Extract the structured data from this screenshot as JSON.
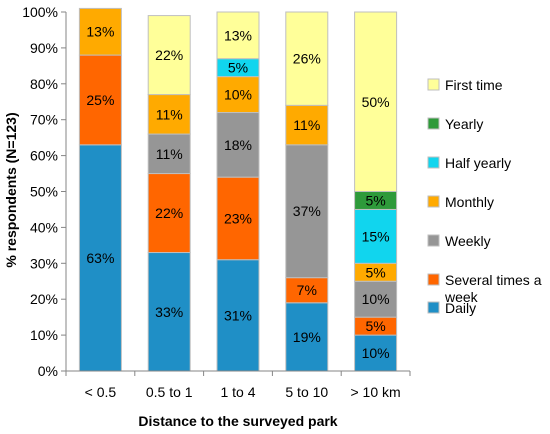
{
  "chart_data": {
    "type": "bar",
    "stacked": true,
    "xlabel": "Distance to the surveyed park",
    "ylabel": "% respondents (N=123)",
    "ylim": [
      0,
      100
    ],
    "y_ticks": [
      "0%",
      "10%",
      "20%",
      "30%",
      "40%",
      "50%",
      "60%",
      "70%",
      "80%",
      "90%",
      "100%"
    ],
    "grid": false,
    "legend_position": "right",
    "categories": [
      "< 0.5",
      "0.5 to 1",
      "1 to 4",
      "5 to 10",
      "> 10 km"
    ],
    "series": [
      {
        "name": "Daily",
        "color": "#1f8fc6",
        "values": [
          63,
          33,
          31,
          19,
          10
        ],
        "labels": [
          "63%",
          "33%",
          "31%",
          "19%",
          "10%"
        ]
      },
      {
        "name": "Several times a week",
        "color": "#ff6600",
        "values": [
          25,
          22,
          23,
          7,
          5
        ],
        "labels": [
          "25%",
          "22%",
          "23%",
          "7%",
          "5%"
        ]
      },
      {
        "name": "Weekly",
        "color": "#969696",
        "values": [
          0,
          11,
          18,
          37,
          10
        ],
        "labels": [
          "",
          "11%",
          "18%",
          "37%",
          "10%"
        ]
      },
      {
        "name": "Monthly",
        "color": "#ffaa00",
        "values": [
          13,
          11,
          10,
          11,
          5
        ],
        "labels": [
          "13%",
          "11%",
          "10%",
          "11%",
          "5%"
        ]
      },
      {
        "name": "Half yearly",
        "color": "#11d5ee",
        "values": [
          0,
          0,
          5,
          0,
          15
        ],
        "labels": [
          "",
          "",
          "5%",
          "",
          "15%"
        ]
      },
      {
        "name": "Yearly",
        "color": "#2e9a3a",
        "values": [
          0,
          0,
          0,
          0,
          5
        ],
        "labels": [
          "",
          "",
          "",
          "",
          "5%"
        ]
      },
      {
        "name": "First time",
        "color": "#ffff99",
        "values": [
          0,
          22,
          13,
          26,
          50
        ],
        "labels": [
          "",
          "22%",
          "13%",
          "26%",
          "50%"
        ]
      }
    ],
    "legend": [
      {
        "label": "First time",
        "color": "#ffff99"
      },
      {
        "label": "Yearly",
        "color": "#2e9a3a"
      },
      {
        "label": "Half yearly",
        "color": "#11d5ee"
      },
      {
        "label": "Monthly",
        "color": "#ffaa00"
      },
      {
        "label": "Weekly",
        "color": "#969696"
      },
      {
        "label": "Several times a week",
        "color": "#ff6600"
      },
      {
        "label": "Daily",
        "color": "#1f8fc6"
      }
    ]
  }
}
